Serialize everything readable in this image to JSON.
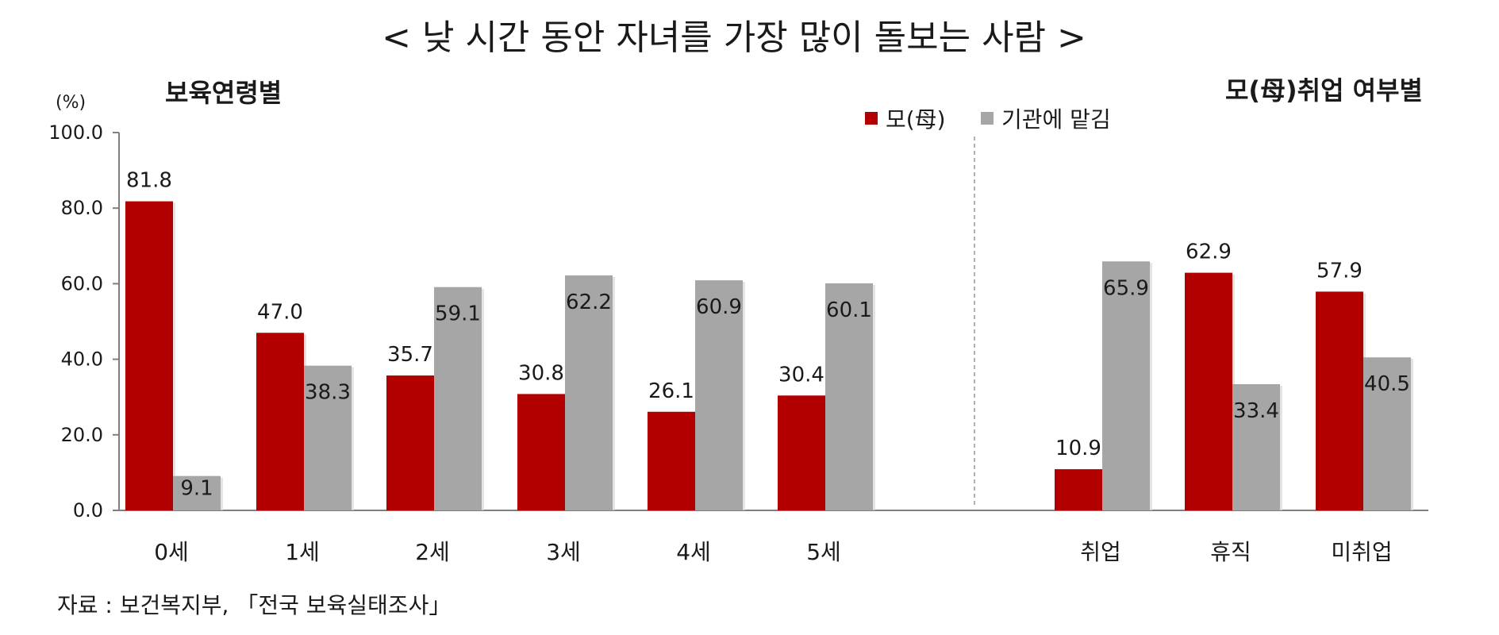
{
  "chart_data": {
    "type": "bar",
    "title": "< 낮 시간 동안 자녀를 가장 많이 돌보는 사람 >",
    "ylabel": "(%)",
    "ylim": [
      0,
      100
    ],
    "yticks": [
      "100.0",
      "80.0",
      "60.0",
      "40.0",
      "20.0",
      "0.0"
    ],
    "legend_position": "top-right",
    "grid": false,
    "series_names": [
      "모(母)",
      "기관에 맡김"
    ],
    "colors": {
      "mother": "#b20000",
      "institution": "#a6a6a6",
      "axis": "#7f7f7f",
      "divider": "#b0b0b0"
    },
    "groups": [
      {
        "label": "보육연령별",
        "categories": [
          "0세",
          "1세",
          "2세",
          "3세",
          "4세",
          "5세"
        ],
        "series": [
          {
            "values": [
              81.8,
              47.0,
              35.7,
              30.8,
              26.1,
              30.4
            ],
            "labels": [
              "81.8",
              "47.0",
              "35.7",
              "30.8",
              "26.1",
              "30.4"
            ]
          },
          {
            "values": [
              9.1,
              38.3,
              59.1,
              62.2,
              60.9,
              60.1
            ],
            "labels": [
              "9.1",
              "38.3",
              "59.1",
              "62.2",
              "60.9",
              "60.1"
            ]
          }
        ]
      },
      {
        "label": "모(母)취업 여부별",
        "categories": [
          "취업",
          "휴직",
          "미취업"
        ],
        "series": [
          {
            "values": [
              10.9,
              62.9,
              57.9
            ],
            "labels": [
              "10.9",
              "62.9",
              "57.9"
            ]
          },
          {
            "values": [
              65.9,
              33.4,
              40.5
            ],
            "labels": [
              "65.9",
              "33.4",
              "40.5"
            ]
          }
        ]
      }
    ]
  },
  "source": "자료 : 보건복지부, 「전국 보육실태조사」"
}
